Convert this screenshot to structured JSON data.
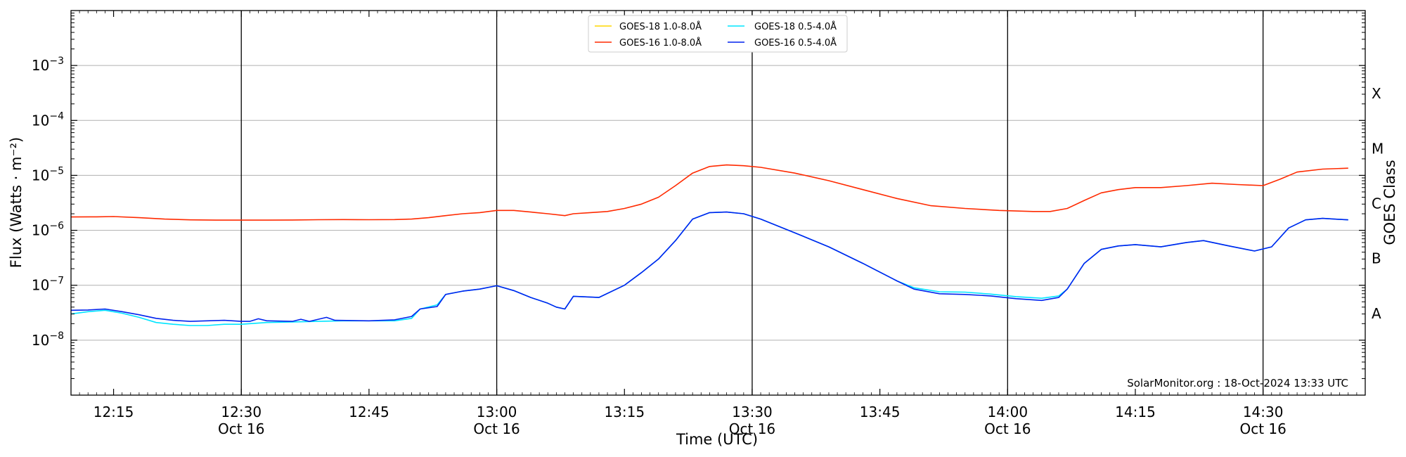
{
  "chart_data": {
    "type": "line",
    "title": "",
    "xlabel": "Time (UTC)",
    "ylabel": "Flux (Watts · m⁻²)",
    "ylabel_right": "GOES Class",
    "y_scale": "log",
    "ylim": [
      1e-09,
      0.01
    ],
    "xlim": [
      "12:10",
      "14:42"
    ],
    "y_ticks": [
      {
        "value": 1e-08,
        "base": "10",
        "exp": "−8"
      },
      {
        "value": 1e-07,
        "base": "10",
        "exp": "−7"
      },
      {
        "value": 1e-06,
        "base": "10",
        "exp": "−6"
      },
      {
        "value": 1e-05,
        "base": "10",
        "exp": "−5"
      },
      {
        "value": 0.0001,
        "base": "10",
        "exp": "−4"
      },
      {
        "value": 0.001,
        "base": "10",
        "exp": "−3"
      }
    ],
    "x_ticks": [
      {
        "time": "12:15",
        "label": "12:15",
        "sub": ""
      },
      {
        "time": "12:30",
        "label": "12:30",
        "sub": "Oct 16"
      },
      {
        "time": "12:45",
        "label": "12:45",
        "sub": ""
      },
      {
        "time": "13:00",
        "label": "13:00",
        "sub": "Oct 16"
      },
      {
        "time": "13:15",
        "label": "13:15",
        "sub": ""
      },
      {
        "time": "13:30",
        "label": "13:30",
        "sub": "Oct 16"
      },
      {
        "time": "13:45",
        "label": "13:45",
        "sub": ""
      },
      {
        "time": "14:00",
        "label": "14:00",
        "sub": "Oct 16"
      },
      {
        "time": "14:15",
        "label": "14:15",
        "sub": ""
      },
      {
        "time": "14:30",
        "label": "14:30",
        "sub": "Oct 16"
      }
    ],
    "vertical_lines": [
      "12:30",
      "13:00",
      "13:30",
      "14:00",
      "14:30"
    ],
    "goes_classes": [
      {
        "label": "A",
        "value": 3.16e-08
      },
      {
        "label": "B",
        "value": 3.16e-07
      },
      {
        "label": "C",
        "value": 3.16e-06
      },
      {
        "label": "M",
        "value": 3.16e-05
      },
      {
        "label": "X",
        "value": 0.000316
      }
    ],
    "grid": true,
    "legend_position": "top-center",
    "annotation": "SolarMonitor.org : 18-Oct-2024 13:33 UTC",
    "series": [
      {
        "name": "GOES-18 1.0-8.0Å",
        "color": "#ffd700",
        "points": []
      },
      {
        "name": "GOES-16 1.0-8.0Å",
        "color": "#ff2a00",
        "points": [
          [
            "12:10",
            1.75e-06
          ],
          [
            "12:13",
            1.76e-06
          ],
          [
            "12:15",
            1.78e-06
          ],
          [
            "12:18",
            1.7e-06
          ],
          [
            "12:21",
            1.6e-06
          ],
          [
            "12:24",
            1.55e-06
          ],
          [
            "12:27",
            1.53e-06
          ],
          [
            "12:30",
            1.53e-06
          ],
          [
            "12:33",
            1.53e-06
          ],
          [
            "12:36",
            1.54e-06
          ],
          [
            "12:39",
            1.56e-06
          ],
          [
            "12:42",
            1.57e-06
          ],
          [
            "12:45",
            1.56e-06
          ],
          [
            "12:48",
            1.57e-06
          ],
          [
            "12:50",
            1.6e-06
          ],
          [
            "12:52",
            1.7e-06
          ],
          [
            "12:54",
            1.85e-06
          ],
          [
            "12:56",
            2e-06
          ],
          [
            "12:58",
            2.1e-06
          ],
          [
            "13:00",
            2.3e-06
          ],
          [
            "13:02",
            2.3e-06
          ],
          [
            "13:04",
            2.15e-06
          ],
          [
            "13:06",
            2e-06
          ],
          [
            "13:08",
            1.85e-06
          ],
          [
            "13:09",
            2e-06
          ],
          [
            "13:11",
            2.1e-06
          ],
          [
            "13:13",
            2.2e-06
          ],
          [
            "13:15",
            2.5e-06
          ],
          [
            "13:17",
            3e-06
          ],
          [
            "13:19",
            4e-06
          ],
          [
            "13:21",
            6.5e-06
          ],
          [
            "13:23",
            1.1e-05
          ],
          [
            "13:25",
            1.45e-05
          ],
          [
            "13:27",
            1.55e-05
          ],
          [
            "13:29",
            1.5e-05
          ],
          [
            "13:31",
            1.4e-05
          ],
          [
            "13:35",
            1.1e-05
          ],
          [
            "13:39",
            8e-06
          ],
          [
            "13:43",
            5.5e-06
          ],
          [
            "13:47",
            3.8e-06
          ],
          [
            "13:51",
            2.8e-06
          ],
          [
            "13:55",
            2.5e-06
          ],
          [
            "13:59",
            2.3e-06
          ],
          [
            "14:03",
            2.2e-06
          ],
          [
            "14:05",
            2.2e-06
          ],
          [
            "14:07",
            2.5e-06
          ],
          [
            "14:09",
            3.5e-06
          ],
          [
            "14:11",
            4.8e-06
          ],
          [
            "14:13",
            5.5e-06
          ],
          [
            "14:15",
            6e-06
          ],
          [
            "14:18",
            6e-06
          ],
          [
            "14:21",
            6.5e-06
          ],
          [
            "14:24",
            7.2e-06
          ],
          [
            "14:27",
            6.8e-06
          ],
          [
            "14:30",
            6.5e-06
          ],
          [
            "14:32",
            8.5e-06
          ],
          [
            "14:34",
            1.15e-05
          ],
          [
            "14:37",
            1.3e-05
          ],
          [
            "14:40",
            1.35e-05
          ]
        ]
      },
      {
        "name": "GOES-18 0.5-4.0Å",
        "color": "#00e5ff",
        "points": [
          [
            "12:10",
            3e-08
          ],
          [
            "12:12",
            3.3e-08
          ],
          [
            "12:14",
            3.5e-08
          ],
          [
            "12:16",
            3.1e-08
          ],
          [
            "12:18",
            2.6e-08
          ],
          [
            "12:20",
            2.1e-08
          ],
          [
            "12:22",
            1.95e-08
          ],
          [
            "12:24",
            1.85e-08
          ],
          [
            "12:26",
            1.85e-08
          ],
          [
            "12:28",
            1.95e-08
          ],
          [
            "12:30",
            1.95e-08
          ],
          [
            "12:33",
            2.1e-08
          ],
          [
            "12:36",
            2.15e-08
          ],
          [
            "12:39",
            2.2e-08
          ],
          [
            "12:42",
            2.25e-08
          ],
          [
            "12:45",
            2.25e-08
          ],
          [
            "12:48",
            2.25e-08
          ],
          [
            "12:50",
            2.5e-08
          ],
          [
            "12:51",
            3.7e-08
          ],
          [
            "12:53",
            4.4e-08
          ],
          [
            "12:54",
            6.8e-08
          ],
          [
            "12:56",
            7.8e-08
          ],
          [
            "12:58",
            8.5e-08
          ],
          [
            "13:00",
            9.8e-08
          ],
          [
            "13:02",
            8e-08
          ],
          [
            "13:04",
            6e-08
          ],
          [
            "13:06",
            4.7e-08
          ],
          [
            "13:07",
            4e-08
          ],
          [
            "13:08",
            3.7e-08
          ],
          [
            "13:09",
            6.3e-08
          ],
          [
            "13:12",
            6e-08
          ],
          [
            "13:15",
            1e-07
          ],
          [
            "13:17",
            1.7e-07
          ],
          [
            "13:19",
            3e-07
          ],
          [
            "13:21",
            6.5e-07
          ],
          [
            "13:23",
            1.6e-06
          ],
          [
            "13:25",
            2.1e-06
          ],
          [
            "13:27",
            2.15e-06
          ],
          [
            "13:29",
            2e-06
          ],
          [
            "13:31",
            1.6e-06
          ],
          [
            "13:35",
            9e-07
          ],
          [
            "13:39",
            5e-07
          ],
          [
            "13:43",
            2.5e-07
          ],
          [
            "13:47",
            1.2e-07
          ],
          [
            "13:49",
            9e-08
          ],
          [
            "13:52",
            7.6e-08
          ],
          [
            "13:55",
            7.5e-08
          ],
          [
            "13:58",
            6.9e-08
          ],
          [
            "14:01",
            6.2e-08
          ],
          [
            "14:04",
            5.8e-08
          ],
          [
            "14:06",
            6.4e-08
          ],
          [
            "14:07",
            8.5e-08
          ],
          [
            "14:09",
            2.5e-07
          ],
          [
            "14:11",
            4.5e-07
          ],
          [
            "14:13",
            5.2e-07
          ],
          [
            "14:15",
            5.5e-07
          ],
          [
            "14:18",
            5e-07
          ],
          [
            "14:21",
            6e-07
          ],
          [
            "14:23",
            6.5e-07
          ],
          [
            "14:26",
            5.2e-07
          ],
          [
            "14:29",
            4.2e-07
          ],
          [
            "14:31",
            5e-07
          ],
          [
            "14:33",
            1.1e-06
          ],
          [
            "14:35",
            1.55e-06
          ],
          [
            "14:37",
            1.65e-06
          ],
          [
            "14:40",
            1.55e-06
          ]
        ]
      },
      {
        "name": "GOES-16 0.5-4.0Å",
        "color": "#0022ee",
        "points": [
          [
            "12:10",
            3.5e-08
          ],
          [
            "12:12",
            3.55e-08
          ],
          [
            "12:14",
            3.7e-08
          ],
          [
            "12:16",
            3.3e-08
          ],
          [
            "12:18",
            2.9e-08
          ],
          [
            "12:20",
            2.5e-08
          ],
          [
            "12:22",
            2.3e-08
          ],
          [
            "12:24",
            2.2e-08
          ],
          [
            "12:26",
            2.25e-08
          ],
          [
            "12:28",
            2.3e-08
          ],
          [
            "12:30",
            2.2e-08
          ],
          [
            "12:31",
            2.2e-08
          ],
          [
            "12:32",
            2.45e-08
          ],
          [
            "12:33",
            2.25e-08
          ],
          [
            "12:36",
            2.2e-08
          ],
          [
            "12:37",
            2.4e-08
          ],
          [
            "12:38",
            2.2e-08
          ],
          [
            "12:40",
            2.6e-08
          ],
          [
            "12:41",
            2.3e-08
          ],
          [
            "12:45",
            2.25e-08
          ],
          [
            "12:48",
            2.35e-08
          ],
          [
            "12:50",
            2.7e-08
          ],
          [
            "12:51",
            3.7e-08
          ],
          [
            "12:53",
            4.1e-08
          ],
          [
            "12:54",
            6.8e-08
          ],
          [
            "12:56",
            7.8e-08
          ],
          [
            "12:58",
            8.5e-08
          ],
          [
            "13:00",
            9.8e-08
          ],
          [
            "13:02",
            8e-08
          ],
          [
            "13:04",
            6e-08
          ],
          [
            "13:06",
            4.7e-08
          ],
          [
            "13:07",
            4e-08
          ],
          [
            "13:08",
            3.7e-08
          ],
          [
            "13:09",
            6.3e-08
          ],
          [
            "13:12",
            6e-08
          ],
          [
            "13:15",
            1e-07
          ],
          [
            "13:17",
            1.7e-07
          ],
          [
            "13:19",
            3e-07
          ],
          [
            "13:21",
            6.5e-07
          ],
          [
            "13:23",
            1.6e-06
          ],
          [
            "13:25",
            2.1e-06
          ],
          [
            "13:27",
            2.15e-06
          ],
          [
            "13:29",
            2e-06
          ],
          [
            "13:31",
            1.6e-06
          ],
          [
            "13:35",
            9e-07
          ],
          [
            "13:39",
            5e-07
          ],
          [
            "13:43",
            2.5e-07
          ],
          [
            "13:47",
            1.2e-07
          ],
          [
            "13:49",
            8.5e-08
          ],
          [
            "13:52",
            7e-08
          ],
          [
            "13:55",
            6.8e-08
          ],
          [
            "13:58",
            6.4e-08
          ],
          [
            "14:01",
            5.7e-08
          ],
          [
            "14:04",
            5.3e-08
          ],
          [
            "14:06",
            6e-08
          ],
          [
            "14:07",
            8.5e-08
          ],
          [
            "14:09",
            2.5e-07
          ],
          [
            "14:11",
            4.5e-07
          ],
          [
            "14:13",
            5.2e-07
          ],
          [
            "14:15",
            5.5e-07
          ],
          [
            "14:18",
            5e-07
          ],
          [
            "14:21",
            6e-07
          ],
          [
            "14:23",
            6.5e-07
          ],
          [
            "14:26",
            5.2e-07
          ],
          [
            "14:29",
            4.2e-07
          ],
          [
            "14:31",
            5e-07
          ],
          [
            "14:33",
            1.1e-06
          ],
          [
            "14:35",
            1.55e-06
          ],
          [
            "14:37",
            1.65e-06
          ],
          [
            "14:40",
            1.55e-06
          ]
        ]
      }
    ]
  }
}
